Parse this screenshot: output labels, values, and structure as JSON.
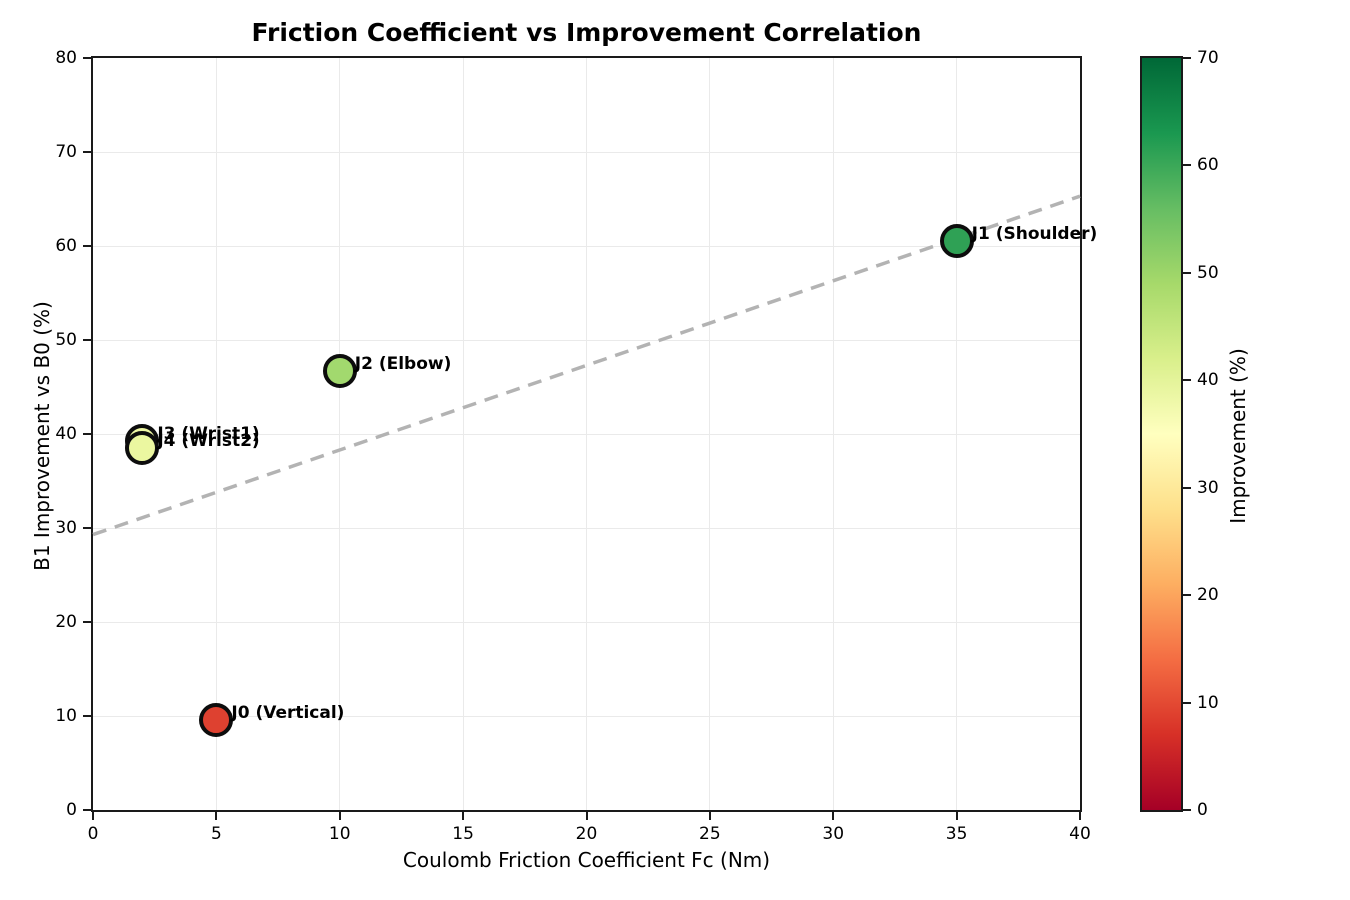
{
  "chart_data": {
    "type": "scatter",
    "title": "Friction Coefficient vs Improvement Correlation",
    "xlabel": "Coulomb Friction Coefficient Fc (Nm)",
    "ylabel": "B1 Improvement vs B0 (%)",
    "xlim": [
      0,
      40
    ],
    "ylim": [
      0,
      80
    ],
    "x_ticks": [
      0,
      5,
      10,
      15,
      20,
      25,
      30,
      35,
      40
    ],
    "y_ticks": [
      0,
      10,
      20,
      30,
      40,
      50,
      60,
      70,
      80
    ],
    "grid": true,
    "grid_color": "#eaeaea",
    "points": [
      {
        "label": "J0 (Vertical)",
        "x": 5,
        "y": 9.6,
        "improvement": 9.6,
        "color": "#de4130"
      },
      {
        "label": "J3 (Wrist1)",
        "x": 2,
        "y": 39.3,
        "improvement": 39.3,
        "color": "#eef8a4"
      },
      {
        "label": "J4 (Wrist2)",
        "x": 2,
        "y": 38.5,
        "improvement": 38.5,
        "color": "#ebf7a0"
      },
      {
        "label": "J2 (Elbow)",
        "x": 10,
        "y": 46.7,
        "improvement": 46.7,
        "color": "#a2d96e"
      },
      {
        "label": "J1 (Shoulder)",
        "x": 35,
        "y": 60.5,
        "improvement": 60.5,
        "color": "#2fa155"
      }
    ],
    "trend_line": {
      "x0": 0,
      "y0": 29.3,
      "x1": 40,
      "y1": 65.3,
      "color": "#b3b3b3",
      "style": "dashed"
    },
    "colorbar": {
      "label": "Improvement (%)",
      "min": 0,
      "max": 70,
      "ticks": [
        0,
        10,
        20,
        30,
        40,
        50,
        60,
        70
      ],
      "colormap": "RdYlGn",
      "gradient_stops": [
        "#a50026",
        "#d73027",
        "#f46d43",
        "#fdae61",
        "#fee08b",
        "#ffffbf",
        "#d9ef8b",
        "#a6d96a",
        "#66bd63",
        "#1a9850",
        "#006837"
      ]
    }
  }
}
